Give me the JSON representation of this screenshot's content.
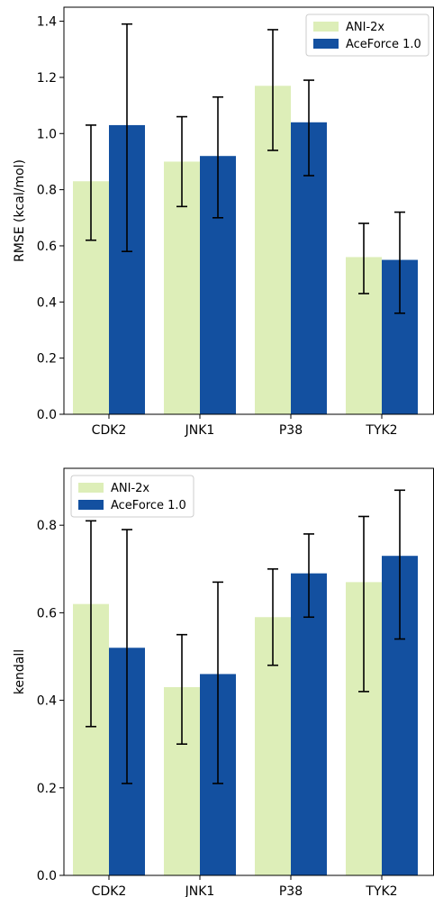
{
  "chart_data": [
    {
      "type": "bar",
      "title": "",
      "xlabel": "",
      "ylabel": "RMSE (kcal/mol)",
      "categories": [
        "CDK2",
        "JNK1",
        "P38",
        "TYK2"
      ],
      "ylim": [
        0,
        1.45
      ],
      "yticks": [
        0.0,
        0.2,
        0.4,
        0.6,
        0.8,
        1.0,
        1.2,
        1.4
      ],
      "ytick_labels": [
        "0.0",
        "0.2",
        "0.4",
        "0.6",
        "0.8",
        "1.0",
        "1.2",
        "1.4"
      ],
      "grid": false,
      "legend": "top-right",
      "series": [
        {
          "name": "ANI-2x",
          "color": "#ddeeb8",
          "values": [
            0.83,
            0.9,
            1.17,
            0.56
          ],
          "err_low": [
            0.62,
            0.74,
            0.94,
            0.43
          ],
          "err_high": [
            1.03,
            1.06,
            1.37,
            0.68
          ]
        },
        {
          "name": "AceForce 1.0",
          "color": "#1350a0",
          "values": [
            1.03,
            0.92,
            1.04,
            0.55
          ],
          "err_low": [
            0.58,
            0.7,
            0.85,
            0.36
          ],
          "err_high": [
            1.39,
            1.13,
            1.19,
            0.72
          ]
        }
      ]
    },
    {
      "type": "bar",
      "title": "",
      "xlabel": "",
      "ylabel": "kendall",
      "categories": [
        "CDK2",
        "JNK1",
        "P38",
        "TYK2"
      ],
      "ylim": [
        0,
        0.93
      ],
      "yticks": [
        0.0,
        0.2,
        0.4,
        0.6,
        0.8
      ],
      "ytick_labels": [
        "0.0",
        "0.2",
        "0.4",
        "0.6",
        "0.8"
      ],
      "grid": false,
      "legend": "top-left",
      "series": [
        {
          "name": "ANI-2x",
          "color": "#ddeeb8",
          "values": [
            0.62,
            0.43,
            0.59,
            0.67
          ],
          "err_low": [
            0.34,
            0.3,
            0.48,
            0.42
          ],
          "err_high": [
            0.81,
            0.55,
            0.7,
            0.82
          ]
        },
        {
          "name": "AceForce 1.0",
          "color": "#1350a0",
          "values": [
            0.52,
            0.46,
            0.69,
            0.73
          ],
          "err_low": [
            0.21,
            0.21,
            0.59,
            0.54
          ],
          "err_high": [
            0.79,
            0.67,
            0.78,
            0.88
          ]
        }
      ]
    }
  ]
}
